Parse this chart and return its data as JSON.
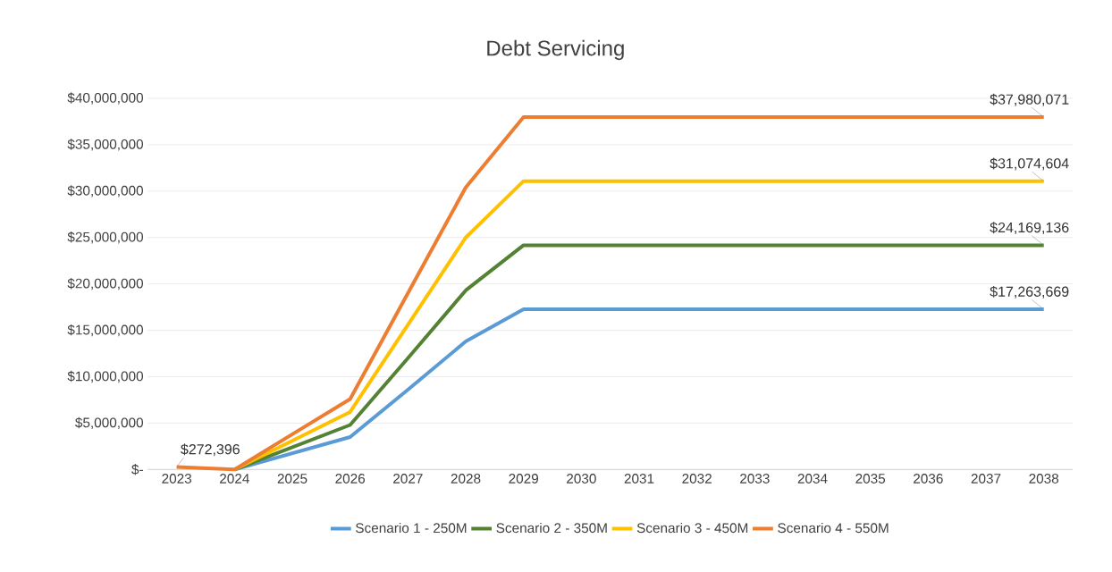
{
  "chart_data": {
    "type": "line",
    "title": "Debt Servicing",
    "categories": [
      "2023",
      "2024",
      "2025",
      "2026",
      "2027",
      "2028",
      "2029",
      "2030",
      "2031",
      "2032",
      "2033",
      "2034",
      "2035",
      "2036",
      "2037",
      "2038"
    ],
    "ylim": [
      0,
      40000000
    ],
    "yticks": [
      {
        "value": 0,
        "label": "$-"
      },
      {
        "value": 5000000,
        "label": "$5,000,000"
      },
      {
        "value": 10000000,
        "label": "$10,000,000"
      },
      {
        "value": 15000000,
        "label": "$15,000,000"
      },
      {
        "value": 20000000,
        "label": "$20,000,000"
      },
      {
        "value": 25000000,
        "label": "$25,000,000"
      },
      {
        "value": 30000000,
        "label": "$30,000,000"
      },
      {
        "value": 35000000,
        "label": "$35,000,000"
      },
      {
        "value": 40000000,
        "label": "$40,000,000"
      }
    ],
    "grid": "y",
    "legend": "bottom",
    "series": [
      {
        "name": "Scenario 1 - 250M",
        "color": "#5b9bd5",
        "values": [
          null,
          0,
          1750000,
          3500000,
          8600000,
          13800000,
          17263669,
          17263669,
          17263669,
          17263669,
          17263669,
          17263669,
          17263669,
          17263669,
          17263669,
          17263669
        ],
        "value_labels": [
          null,
          null,
          null,
          null,
          null,
          null,
          null,
          null,
          null,
          null,
          null,
          null,
          null,
          null,
          null,
          "$17,263,669"
        ]
      },
      {
        "name": "Scenario 2 - 350M",
        "color": "#548235",
        "values": [
          null,
          0,
          2400000,
          4800000,
          12000000,
          19300000,
          24169136,
          24169136,
          24169136,
          24169136,
          24169136,
          24169136,
          24169136,
          24169136,
          24169136,
          24169136
        ],
        "value_labels": [
          null,
          null,
          null,
          null,
          null,
          null,
          null,
          null,
          null,
          null,
          null,
          null,
          null,
          null,
          null,
          "$24,169,136"
        ]
      },
      {
        "name": "Scenario 3 - 450M",
        "color": "#ffc000",
        "values": [
          null,
          0,
          3100000,
          6200000,
          15600000,
          25000000,
          31074604,
          31074604,
          31074604,
          31074604,
          31074604,
          31074604,
          31074604,
          31074604,
          31074604,
          31074604
        ],
        "value_labels": [
          null,
          null,
          null,
          null,
          null,
          null,
          null,
          null,
          null,
          null,
          null,
          null,
          null,
          null,
          null,
          "$31,074,604"
        ]
      },
      {
        "name": "Scenario 4 - 550M",
        "color": "#ed7d31",
        "values": [
          272396,
          0,
          3800000,
          7600000,
          19000000,
          30400000,
          37980071,
          37980071,
          37980071,
          37980071,
          37980071,
          37980071,
          37980071,
          37980071,
          37980071,
          37980071
        ],
        "value_labels": [
          "$272,396",
          null,
          null,
          null,
          null,
          null,
          null,
          null,
          null,
          null,
          null,
          null,
          null,
          null,
          null,
          "$37,980,071"
        ]
      }
    ]
  }
}
